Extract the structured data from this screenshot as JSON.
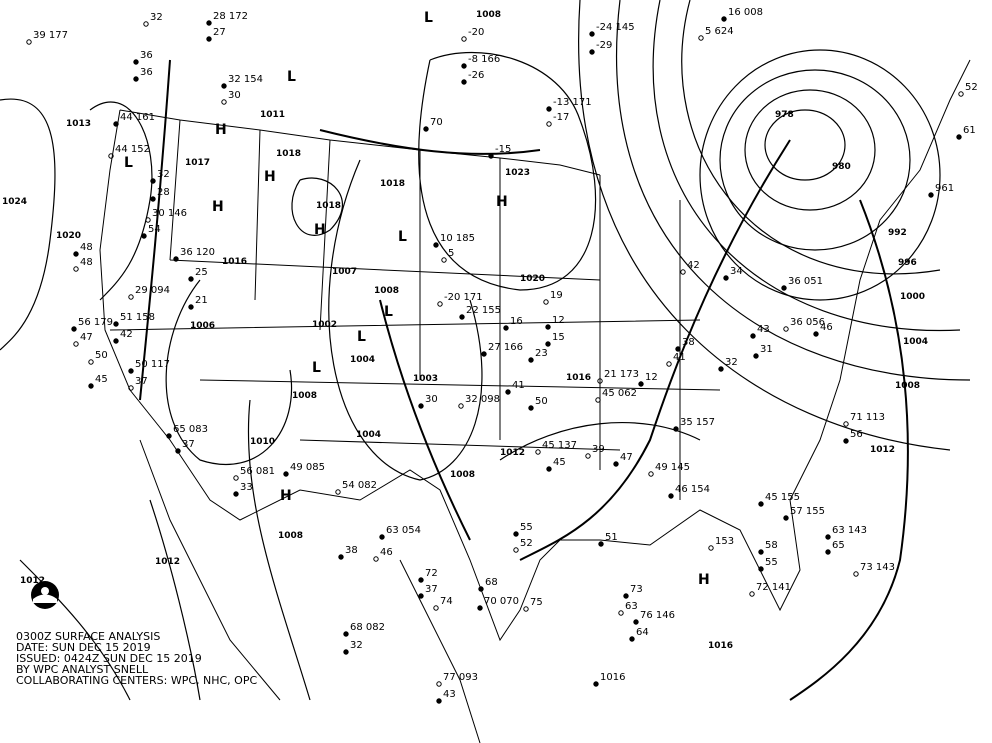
{
  "caption": {
    "title": "0300Z SURFACE ANALYSIS",
    "date": "DATE: SUN DEC 15 2019",
    "issued": "ISSUED: 0424Z SUN DEC 15 2019",
    "analyst": "BY WPC ANALYST SNELL",
    "centers": "COLLABORATING CENTERS: WPC, NHC, OPC"
  },
  "isobar_labels": [
    "1013",
    "1024",
    "1020",
    "1016",
    "1017",
    "1011",
    "1018",
    "1018",
    "1018",
    "1007",
    "1006",
    "1002",
    "1008",
    "1004",
    "1003",
    "1008",
    "1004",
    "1010",
    "1008",
    "1008",
    "1012",
    "1016",
    "1020",
    "1023",
    "1008",
    "978",
    "980",
    "992",
    "996",
    "1000",
    "1004",
    "1008",
    "1012",
    "1016",
    "1012",
    "1012"
  ],
  "pressure_centers": [
    "H",
    "H",
    "H",
    "H",
    "H",
    "H",
    "H",
    "L",
    "L",
    "L",
    "L",
    "L",
    "L",
    "L"
  ],
  "stations": [
    "32",
    "28 172",
    "27",
    "39 177",
    "36",
    "32 154",
    "30",
    "36",
    "44 161",
    "44 152",
    "32",
    "28",
    "30 146",
    "54",
    "48",
    "48",
    "36 120",
    "25",
    "29 094",
    "21",
    "56 179",
    "47",
    "51 158",
    "42",
    "50",
    "45",
    "50 117",
    "37",
    "65 083",
    "37",
    "56 081",
    "33",
    "49 085",
    "54 082",
    "63 054",
    "38",
    "46",
    "72",
    "37",
    "74",
    "68",
    "70 070",
    "75",
    "68 082",
    "32",
    "77 093",
    "43",
    "55",
    "52",
    "51",
    "73",
    "63",
    "76 146",
    "64",
    "153",
    "58",
    "55",
    "72 141",
    "63 143",
    "65",
    "71 113",
    "56",
    "61",
    "52",
    "961",
    "16 008",
    "5 624",
    "-24 145",
    "-29",
    "-20",
    "-26",
    "-13 171",
    "-17",
    "-15",
    "10 185",
    "5",
    "27 166",
    "23",
    "45 137",
    "45",
    "47",
    "49 145",
    "46 154",
    "30",
    "32 098",
    "41",
    "50",
    "39",
    "45 155",
    "57 155",
    "73 143",
    "70",
    "-8 166",
    "-20 171",
    "22 155",
    "16",
    "19",
    "12",
    "15",
    "21 173",
    "12",
    "35 157",
    "41",
    "38",
    "32",
    "42",
    "34",
    "36 051",
    "36 056",
    "43",
    "46",
    "45 062",
    "31",
    "1016"
  ],
  "colors": {
    "lines": "#000000",
    "background": "#ffffff"
  },
  "logo": "NOAA"
}
